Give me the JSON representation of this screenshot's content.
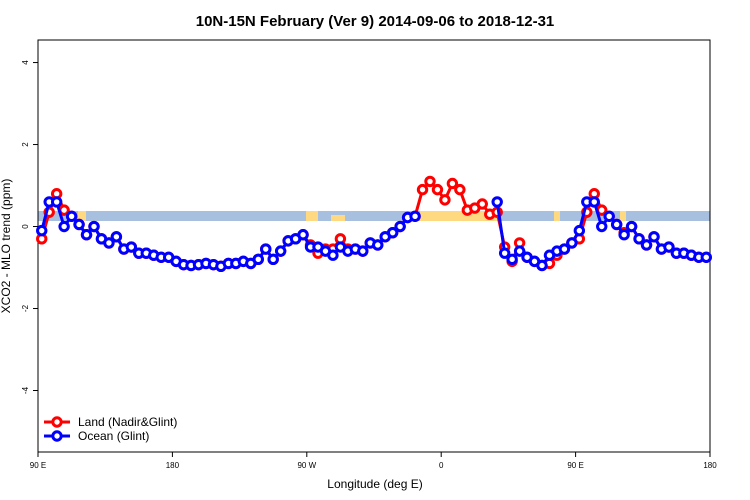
{
  "chart_data": {
    "type": "line",
    "title": "10N-15N February (Ver 9)   2014-09-06 to 2018-12-31",
    "xlabel": "Longitude (deg E)",
    "ylabel": "XCO2 - MLO trend (ppm)",
    "xlim": [
      90,
      540
    ],
    "xticks": [
      {
        "value": 90,
        "label": "90 E"
      },
      180,
      {
        "value": 270,
        "label": "90 W"
      },
      {
        "value": 360,
        "label": "0"
      },
      {
        "value": 450,
        "label": "90 E"
      },
      {
        "value": 540,
        "label": "180"
      }
    ],
    "ylim": [
      -5.5,
      4.55
    ],
    "yticks": [
      -4,
      -2,
      0,
      2,
      4
    ],
    "legend": "bottom-left",
    "x": [
      92.5,
      97.5,
      102.5,
      107.5,
      112.5,
      117.5,
      122.5,
      127.5,
      132.5,
      137.5,
      142.5,
      147.5,
      152.5,
      157.5,
      162.5,
      167.5,
      172.5,
      177.5,
      182.5,
      187.5,
      192.5,
      197.5,
      202.5,
      207.5,
      212.5,
      217.5,
      222.5,
      227.5,
      232.5,
      237.5,
      242.5,
      247.5,
      252.5,
      257.5,
      262.5,
      267.5,
      272.5,
      277.5,
      282.5,
      287.5,
      292.5,
      297.5,
      302.5,
      307.5,
      312.5,
      317.5,
      322.5,
      327.5,
      332.5,
      337.5,
      342.5,
      347.5,
      352.5,
      357.5,
      362.5,
      367.5,
      372.5,
      377.5,
      382.5,
      387.5,
      392.5,
      397.5,
      402.5,
      407.5,
      412.5,
      417.5,
      422.5,
      427.5,
      432.5,
      437.5,
      442.5,
      447.5,
      452.5,
      457.5,
      462.5,
      467.5,
      472.5,
      477.5,
      482.5,
      487.5,
      492.5,
      497.5,
      502.5,
      507.5,
      512.5,
      517.5,
      522.5,
      527.5,
      532.5,
      537.5
    ],
    "series": [
      {
        "name": "Land (Nadir&Glint)",
        "color": "#ff0000",
        "values": [
          -0.3,
          0.35,
          0.8,
          0.4,
          0.25,
          0.05,
          -0.2,
          0,
          -0.3,
          -0.4,
          -0.25,
          -0.55,
          -0.5,
          -0.65,
          -0.65,
          -0.7,
          -0.75,
          -0.75,
          -0.85,
          -0.93,
          -0.95,
          -0.93,
          -0.9,
          -0.93,
          -0.97,
          -0.9,
          -0.9,
          -0.85,
          -0.9,
          -0.8,
          -0.55,
          -0.8,
          -0.6,
          -0.35,
          -0.3,
          -0.2,
          -0.45,
          -0.65,
          -0.55,
          -0.55,
          -0.3,
          -0.55,
          -0.55,
          -0.6,
          -0.4,
          -0.45,
          -0.25,
          -0.15,
          0,
          0.22,
          0.25,
          0.9,
          1.1,
          0.9,
          0.65,
          1.05,
          0.9,
          0.4,
          0.45,
          0.55,
          0.3,
          0.35,
          -0.5,
          -0.85,
          -0.4,
          -0.75,
          -0.85,
          -0.95,
          -0.9,
          -0.7,
          -0.55,
          -0.4,
          -0.3,
          0.35,
          0.8,
          0.4,
          0.25,
          0.05,
          -0.15,
          0,
          -0.3,
          -0.45,
          -0.25,
          -0.55,
          -0.5,
          -0.65,
          -0.65,
          -0.7,
          -0.75,
          -0.75
        ]
      },
      {
        "name": "Ocean (Glint)",
        "color": "#0000ff",
        "values": [
          -0.1,
          0.6,
          0.6,
          0,
          0.25,
          0.05,
          -0.2,
          0,
          -0.3,
          -0.4,
          -0.25,
          -0.55,
          -0.5,
          -0.65,
          -0.65,
          -0.7,
          -0.75,
          -0.75,
          -0.85,
          -0.93,
          -0.95,
          -0.93,
          -0.9,
          -0.93,
          -0.97,
          -0.9,
          -0.9,
          -0.85,
          -0.9,
          -0.8,
          -0.55,
          -0.8,
          -0.6,
          -0.35,
          -0.3,
          -0.2,
          -0.5,
          -0.5,
          -0.6,
          -0.7,
          -0.5,
          -0.6,
          -0.55,
          -0.6,
          -0.4,
          -0.45,
          -0.25,
          -0.15,
          0,
          0.22,
          0.25,
          null,
          null,
          null,
          null,
          null,
          null,
          null,
          null,
          null,
          null,
          0.6,
          -0.65,
          -0.8,
          -0.6,
          -0.75,
          -0.85,
          -0.95,
          -0.7,
          -0.6,
          -0.55,
          -0.4,
          -0.1,
          0.6,
          0.6,
          0,
          0.25,
          0.05,
          -0.2,
          0,
          -0.3,
          -0.45,
          -0.25,
          -0.55,
          -0.5,
          -0.65,
          -0.65,
          -0.7,
          -0.75,
          -0.75
        ]
      }
    ]
  }
}
